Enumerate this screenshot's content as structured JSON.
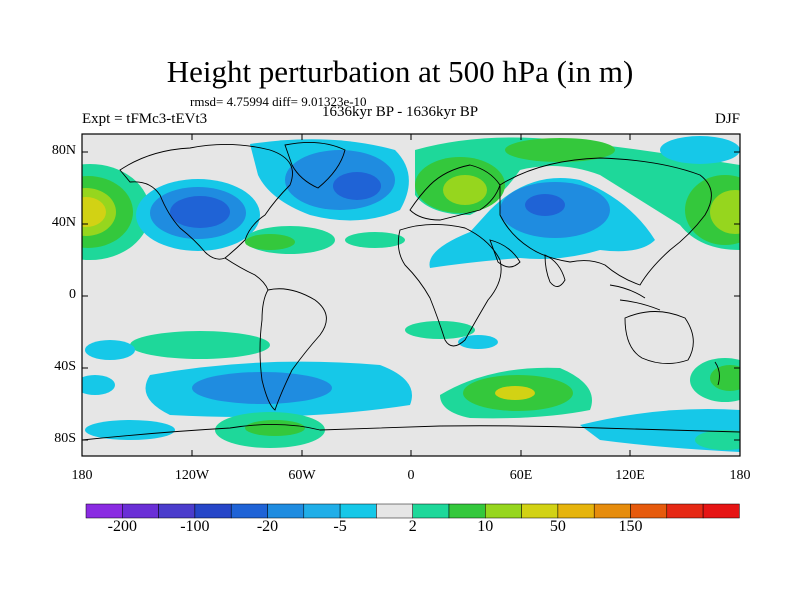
{
  "title": "Height perturbation at 500 hPa (in m)",
  "stats": "rmsd= 4.75994 diff= 9.01323e-10",
  "left_label": "Expt = tFMc3-tEVt3",
  "center_label": "1636kyr BP - 1636kyr BP",
  "right_label": "DJF",
  "lat_labels": [
    "80N",
    "40N",
    "0",
    "40S",
    "80S"
  ],
  "lon_labels": [
    "180",
    "120W",
    "60W",
    "0",
    "60E",
    "120E",
    "180"
  ],
  "colorbar": {
    "labels": [
      "-200",
      "-100",
      "-20",
      "-5",
      "2",
      "10",
      "50",
      "150"
    ],
    "colors": [
      "#8a2be2",
      "#6a2fd6",
      "#4b3ccc",
      "#2646c8",
      "#1f63d6",
      "#1f8ce0",
      "#20aee8",
      "#16c8e8",
      "#e6e6e6",
      "#1ed89a",
      "#34c83c",
      "#96d61e",
      "#d2d214",
      "#e6b40c",
      "#e68c0c",
      "#e65a0c",
      "#e62814",
      "#e61414"
    ]
  },
  "map_colors": {
    "background": "#e6e6e6",
    "land_outline": "#000000"
  }
}
